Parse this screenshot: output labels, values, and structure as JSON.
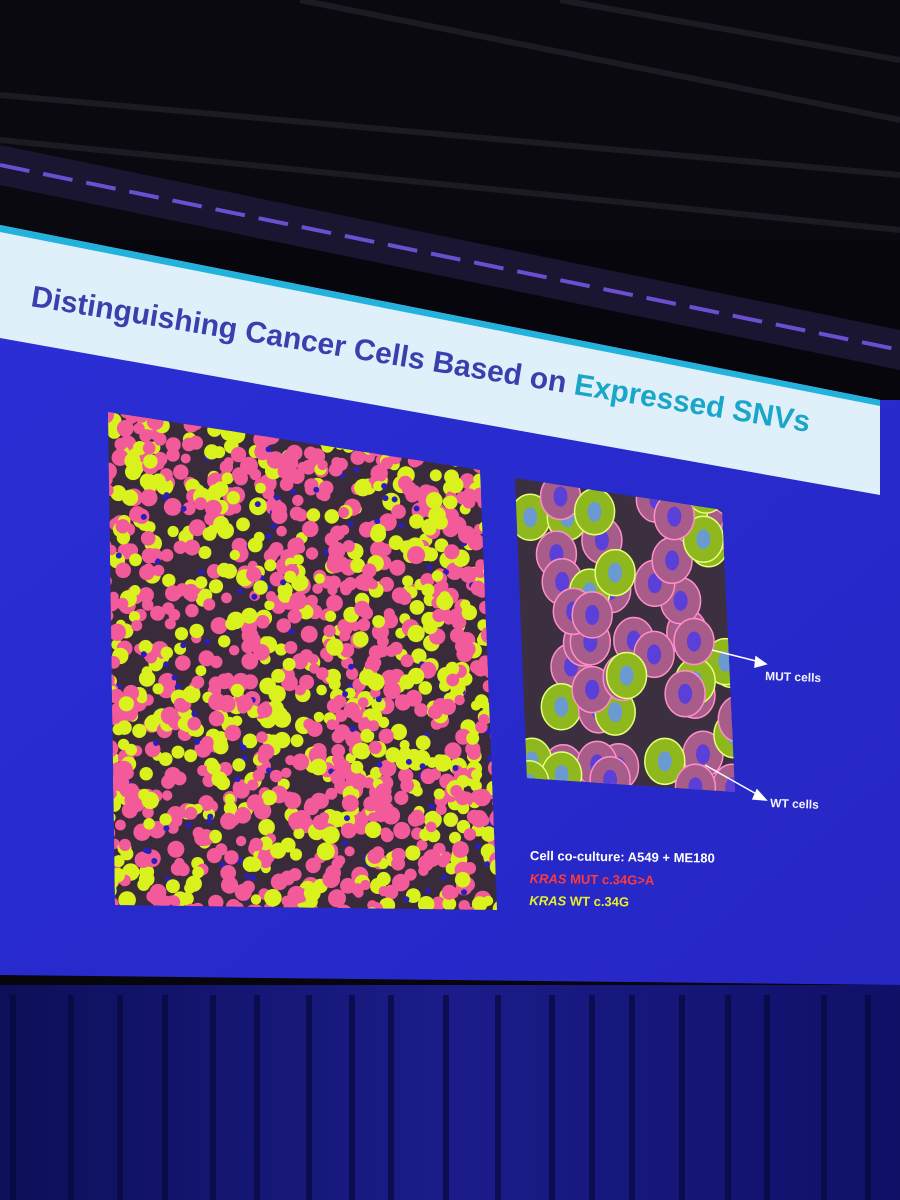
{
  "slide": {
    "title": {
      "lead": "Distinguishing Cancer Cells Based on",
      "highlight": "Expressed SNVs"
    },
    "annotations": {
      "mut": "MUT cells",
      "wt": "WT cells"
    },
    "legend": {
      "culture": "Cell co-culture: A549 + ME180",
      "mut": {
        "gene": "KRAS",
        "variant": "MUT c.34G>A"
      },
      "wt": {
        "gene": "KRAS",
        "variant": "WT c.34G"
      }
    }
  }
}
